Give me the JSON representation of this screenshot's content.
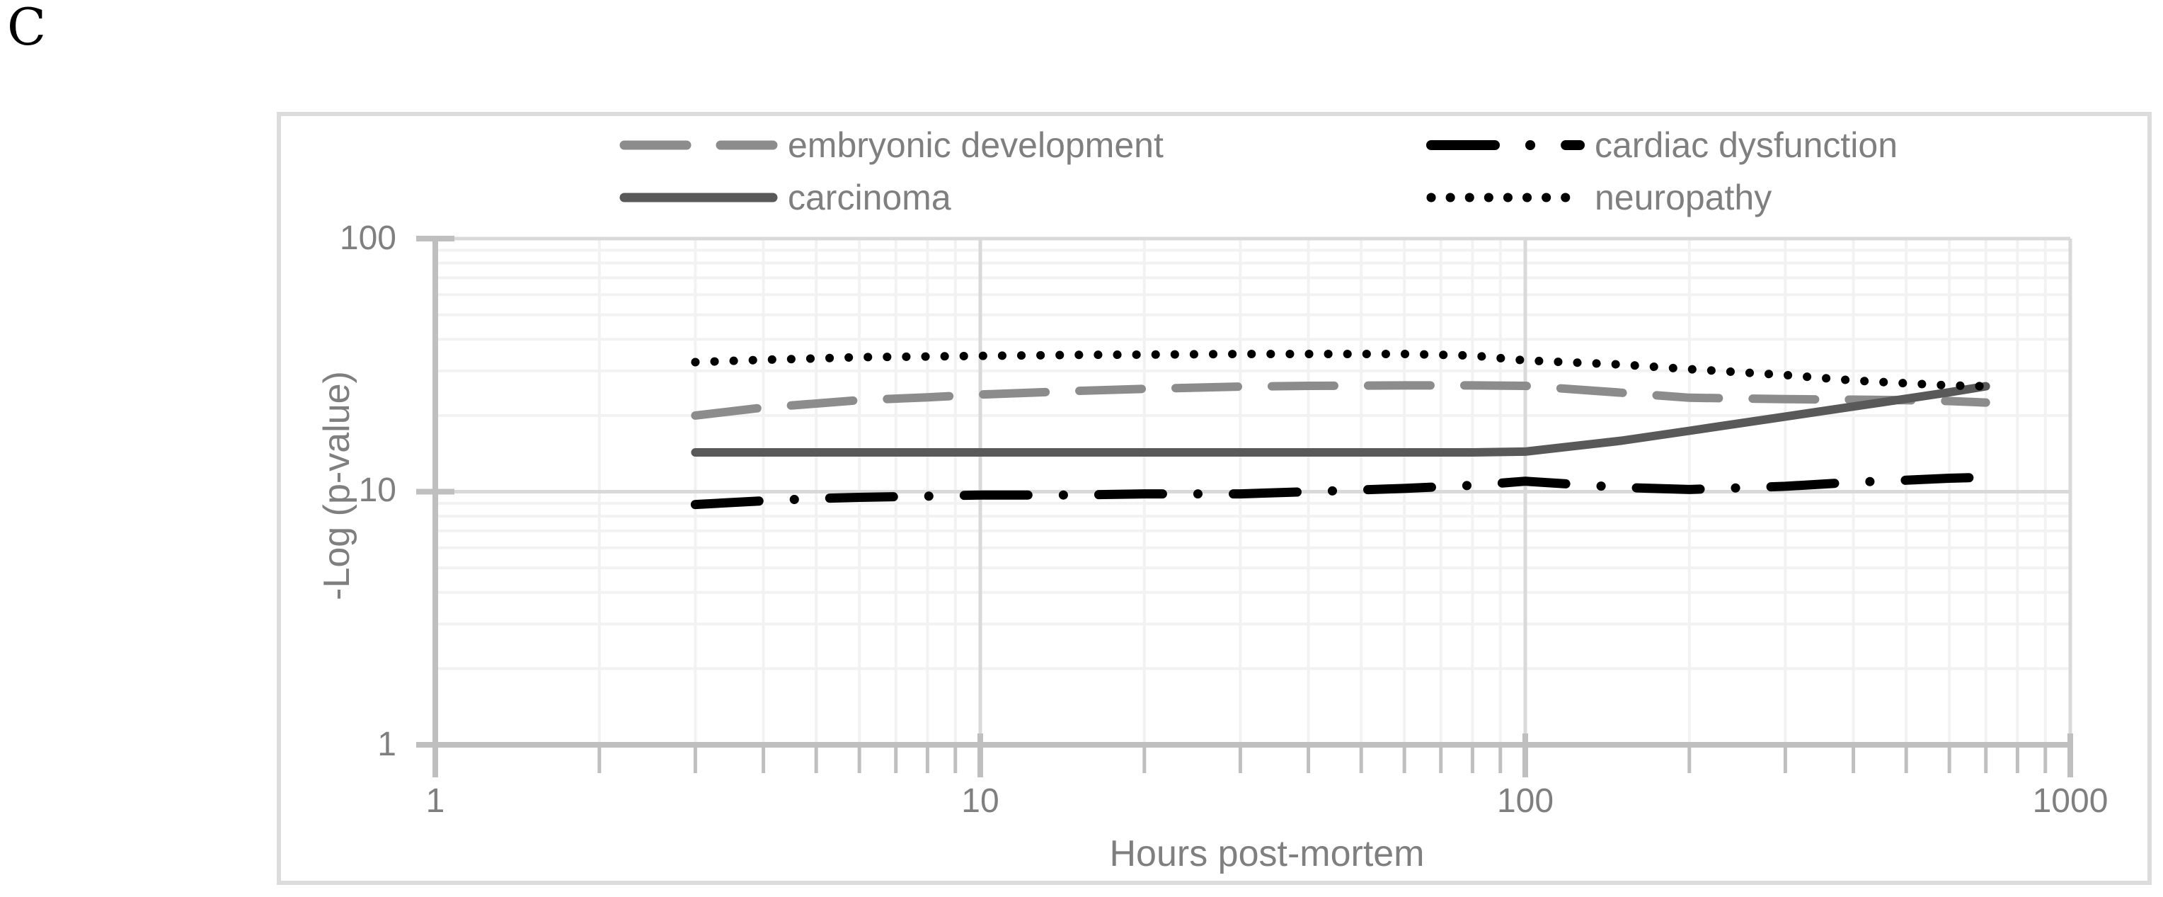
{
  "panel_label": "C",
  "colors": {
    "text": "#7f7f7f",
    "frame_border": "#dcdcdc",
    "minor_grid": "#f2f2f2",
    "major_grid": "#d9d9d9",
    "axis_line": "#bfbfbf",
    "series_gray": "#8c8c8c",
    "series_dark_gray": "#595959",
    "series_black": "#000000"
  },
  "chart_data": {
    "type": "line",
    "title": "",
    "xlabel": "Hours post-mortem",
    "ylabel": "-Log (p-value)",
    "x_scale": "log",
    "y_scale": "log",
    "xlim": [
      1,
      1000
    ],
    "ylim": [
      1,
      100
    ],
    "grid": true,
    "legend_position": "top",
    "x_tick_labels": [
      "1",
      "10",
      "100",
      "1000"
    ],
    "y_tick_labels": [
      "100",
      "10",
      "1"
    ],
    "x": [
      3,
      4,
      5,
      6,
      8,
      10,
      15,
      20,
      30,
      40,
      60,
      80,
      100,
      150,
      200,
      300,
      400,
      500,
      600,
      700
    ],
    "series": [
      {
        "name": "embryonic development",
        "color": "#8c8c8c",
        "style": "dashed",
        "values": [
          20,
          21.5,
          22.3,
          23,
          23.6,
          24.2,
          25,
          25.5,
          26,
          26.2,
          26.3,
          26.3,
          26.2,
          24.6,
          23.5,
          23.2,
          23.1,
          23,
          22.8,
          22.5
        ]
      },
      {
        "name": "cardiac dysfunction",
        "color": "#000000",
        "style": "dashdot",
        "values": [
          8.9,
          9.2,
          9.4,
          9.5,
          9.6,
          9.7,
          9.7,
          9.8,
          9.8,
          10,
          10.3,
          10.6,
          11,
          10.4,
          10.2,
          10.5,
          10.9,
          11.1,
          11.3,
          11.4
        ]
      },
      {
        "name": "carcinoma",
        "color": "#595959",
        "style": "solid",
        "values": [
          14.3,
          14.3,
          14.3,
          14.3,
          14.3,
          14.3,
          14.3,
          14.3,
          14.3,
          14.3,
          14.3,
          14.3,
          14.4,
          15.9,
          17.4,
          19.8,
          21.7,
          23.3,
          24.7,
          26.1
        ]
      },
      {
        "name": "neuropathy",
        "color": "#000000",
        "style": "dotted",
        "values": [
          32.5,
          33.2,
          33.6,
          34,
          34.2,
          34.4,
          34.7,
          34.8,
          35,
          35,
          35,
          34.5,
          33,
          31.8,
          30.5,
          28.9,
          27.5,
          26.8,
          26.3,
          26.1
        ]
      }
    ]
  }
}
